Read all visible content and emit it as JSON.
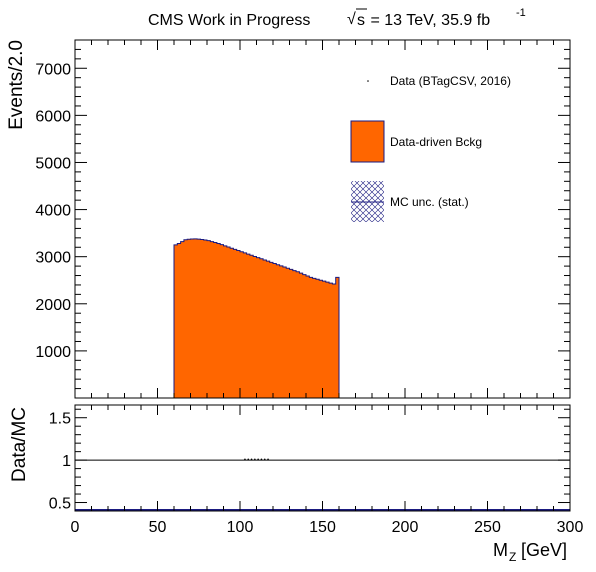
{
  "header": {
    "experiment_label": "CMS Work in Progress",
    "sqrt_symbol": "√",
    "energy_prefix": "s",
    "energy_text": " = 13 TeV, 35.9 fb",
    "lumi_exponent": "-1"
  },
  "legend": {
    "data_label": "Data (BTagCSV, 2016)",
    "bkg_label": "Data-driven Bckg",
    "unc_label": "MC unc. (stat.)"
  },
  "colors": {
    "background_fill": "#ff6600",
    "outline": "#1a1a80",
    "hatch": "#1a1a80"
  },
  "chart_data": [
    {
      "type": "bar",
      "panel": "main",
      "ylabel": "Events/2.0",
      "xlim": [
        0,
        300
      ],
      "ylim": [
        0,
        7600
      ],
      "y_ticks": [
        1000,
        2000,
        3000,
        4000,
        5000,
        6000,
        7000
      ],
      "bin_width": 2,
      "bin_start": 60,
      "series": [
        {
          "name": "Data-driven Bckg",
          "values": [
            3250,
            3280,
            3320,
            3360,
            3370,
            3375,
            3378,
            3372,
            3365,
            3355,
            3340,
            3320,
            3300,
            3280,
            3255,
            3230,
            3205,
            3180,
            3155,
            3130,
            3105,
            3080,
            3055,
            3030,
            3005,
            2980,
            2955,
            2930,
            2905,
            2880,
            2855,
            2830,
            2805,
            2780,
            2755,
            2730,
            2705,
            2680,
            2650,
            2620,
            2590,
            2560,
            2540,
            2520,
            2500,
            2480,
            2460,
            2440,
            2420,
            2560
          ]
        }
      ]
    },
    {
      "type": "scatter",
      "panel": "ratio",
      "ylabel": "Data/MC",
      "xlabel_main": "M",
      "xlabel_sub": "Z",
      "xlabel_unit": " [GeV]",
      "xlim": [
        0,
        300
      ],
      "ylim": [
        0.4,
        1.65
      ],
      "y_ticks": [
        0.5,
        1,
        1.5
      ],
      "x_ticks": [
        0,
        50,
        100,
        150,
        200,
        250,
        300
      ],
      "reference_line": 1,
      "points_x": [
        103,
        105,
        107,
        109,
        111,
        113,
        115,
        117
      ],
      "points_y": [
        1.01,
        1.01,
        1.01,
        1.01,
        1.01,
        1.01,
        1.01,
        1.01
      ]
    }
  ]
}
